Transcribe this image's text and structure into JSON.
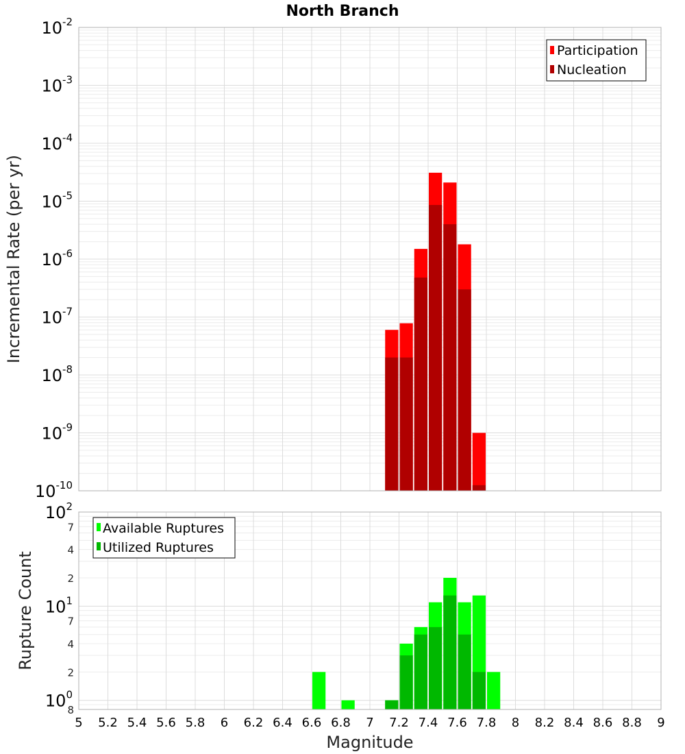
{
  "chart_data": [
    {
      "type": "bar",
      "title": "North Branch",
      "xlabel": "Magnitude",
      "ylabel": "Incremental Rate (per yr)",
      "yscale": "log",
      "ylim": [
        1e-10,
        0.01
      ],
      "xlim": [
        5,
        9
      ],
      "bin_width": 0.1,
      "grid": true,
      "legend_position": "top-right",
      "x_ticks": [
        "5",
        "5.2",
        "5.4",
        "5.6",
        "5.8",
        "6",
        "6.2",
        "6.4",
        "6.6",
        "6.8",
        "7",
        "7.2",
        "7.4",
        "7.6",
        "7.8",
        "8",
        "8.2",
        "8.4",
        "8.6",
        "8.8",
        "9"
      ],
      "y_tick_labels": [
        {
          "base": "10",
          "exp": "-10"
        },
        {
          "base": "10",
          "exp": "-9"
        },
        {
          "base": "10",
          "exp": "-8"
        },
        {
          "base": "10",
          "exp": "-7"
        },
        {
          "base": "10",
          "exp": "-6"
        },
        {
          "base": "10",
          "exp": "-5"
        },
        {
          "base": "10",
          "exp": "-4"
        },
        {
          "base": "10",
          "exp": "-3"
        },
        {
          "base": "10",
          "exp": "-2"
        }
      ],
      "x": [
        7.15,
        7.25,
        7.35,
        7.45,
        7.55,
        7.65,
        7.75
      ],
      "series": [
        {
          "name": "Participation",
          "color": "#ff0000",
          "values": [
            6e-08,
            7.8e-08,
            1.5e-06,
            3.1e-05,
            2.1e-05,
            1.8e-06,
            1e-09
          ]
        },
        {
          "name": "Nucleation",
          "color": "#b00000",
          "values": [
            2e-08,
            2e-08,
            4.8e-07,
            8.6e-06,
            4e-06,
            3e-07,
            1.25e-10
          ]
        }
      ]
    },
    {
      "type": "bar",
      "xlabel": "Magnitude",
      "ylabel": "Rupture Count",
      "yscale": "log",
      "ylim": [
        0.8,
        100
      ],
      "xlim": [
        5,
        9
      ],
      "bin_width": 0.1,
      "grid": true,
      "legend_position": "top-left",
      "y_tick_labels": [
        {
          "value": 1,
          "base": "10",
          "exp": "0"
        },
        {
          "value": 10,
          "base": "10",
          "exp": "1"
        },
        {
          "value": 100,
          "base": "10",
          "exp": "2"
        }
      ],
      "y_minor_tick_labels": [
        {
          "value": 0.8,
          "label": "8"
        },
        {
          "value": 2,
          "label": "2"
        },
        {
          "value": 4,
          "label": "4"
        },
        {
          "value": 7,
          "label": "7"
        },
        {
          "value": 20,
          "label": "2"
        },
        {
          "value": 40,
          "label": "4"
        },
        {
          "value": 70,
          "label": "7"
        }
      ],
      "x": [
        6.65,
        6.85,
        7.15,
        7.25,
        7.35,
        7.45,
        7.55,
        7.65,
        7.75,
        7.85
      ],
      "series": [
        {
          "name": "Available Ruptures",
          "color": "#00ff00",
          "values": [
            2,
            1,
            1,
            4,
            6,
            11,
            20,
            11,
            13,
            2
          ]
        },
        {
          "name": "Utilized Ruptures",
          "color": "#00b800",
          "values": [
            0,
            0,
            1,
            3,
            5,
            6,
            13,
            5,
            2,
            0
          ]
        }
      ]
    }
  ]
}
